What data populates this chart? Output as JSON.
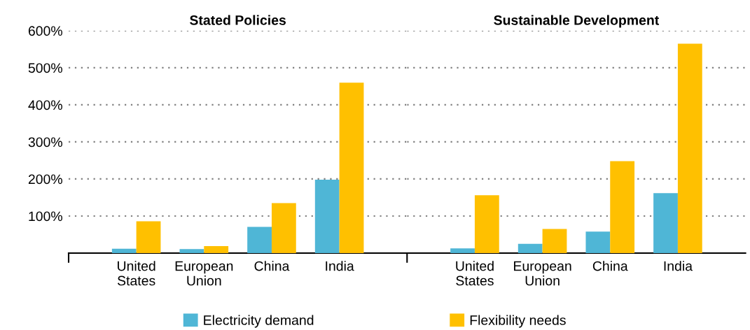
{
  "chart_data": [
    {
      "type": "bar",
      "title": "Stated Policies",
      "categories": [
        "United States",
        "European Union",
        "China",
        "India"
      ],
      "series": [
        {
          "name": "Electricity demand",
          "color": "#4fb6d6",
          "values": [
            12,
            11,
            71,
            198
          ]
        },
        {
          "name": "Flexibility needs",
          "color": "#ffc000",
          "values": [
            86,
            19,
            135,
            460
          ]
        }
      ],
      "ylim": [
        0,
        600
      ],
      "yticks": [
        {
          "value": 0,
          "label": null
        },
        {
          "value": 100,
          "label": "100%"
        },
        {
          "value": 200,
          "label": "200%"
        },
        {
          "value": 300,
          "label": "300%"
        },
        {
          "value": 400,
          "label": "400%"
        },
        {
          "value": 500,
          "label": "500%"
        },
        {
          "value": 600,
          "label": "600%"
        }
      ],
      "grid": "y",
      "legend": "bottom"
    },
    {
      "type": "bar",
      "title": "Sustainable Development",
      "categories": [
        "United States",
        "European Union",
        "China",
        "India"
      ],
      "series": [
        {
          "name": "Electricity demand",
          "color": "#4fb6d6",
          "values": [
            13,
            25,
            58,
            162
          ]
        },
        {
          "name": "Flexibility needs",
          "color": "#ffc000",
          "values": [
            156,
            65,
            248,
            565
          ]
        }
      ],
      "ylim": [
        0,
        600
      ],
      "yticks": [
        {
          "value": 0,
          "label": null
        },
        {
          "value": 100,
          "label": null
        },
        {
          "value": 200,
          "label": null
        },
        {
          "value": 300,
          "label": null
        },
        {
          "value": 400,
          "label": null
        },
        {
          "value": 500,
          "label": null
        },
        {
          "value": 600,
          "label": null
        }
      ],
      "grid": "y",
      "legend": "bottom",
      "tick_labels": "x"
    }
  ]
}
